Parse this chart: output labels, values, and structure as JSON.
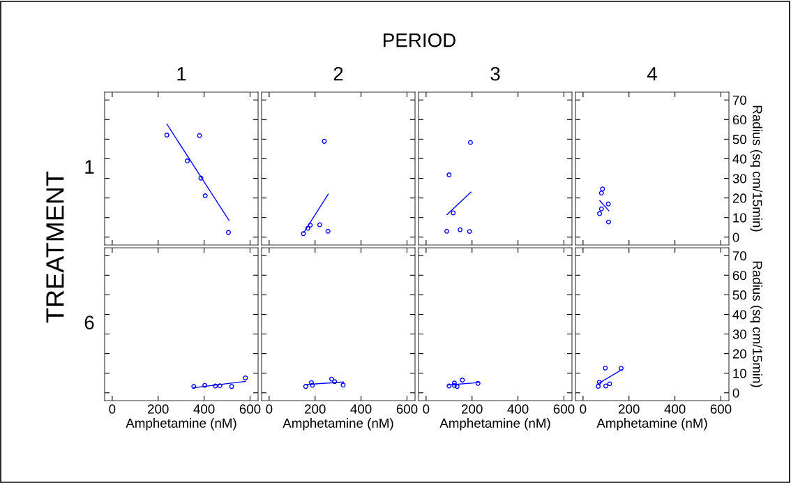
{
  "chart_data": [
    {
      "type": "scatter",
      "title": "1",
      "annotations": [
        "PERIOD",
        "TREATMENT",
        "1"
      ],
      "xlim": [
        -33,
        635
      ],
      "xticks": [
        0,
        200,
        400,
        600
      ],
      "ylim": [
        -4,
        74
      ],
      "yticks": [
        0,
        10,
        20,
        30,
        40,
        50,
        60,
        70
      ],
      "tick_labels": false,
      "marker": "circle",
      "grid": false,
      "series": [
        {
          "color": "#0000ff",
          "x": [
            238,
            380,
            327,
            386,
            405,
            506
          ],
          "values": [
            52.1,
            51.8,
            38.9,
            30.1,
            21.1,
            2.4
          ]
        },
        {
          "type": "line",
          "marker": "none",
          "color": "#0000ff",
          "x": [
            238,
            508
          ],
          "values": [
            57.7,
            8.6
          ]
        }
      ]
    },
    {
      "type": "scatter",
      "title": "2",
      "xlim": [
        -33,
        635
      ],
      "xticks": [
        0,
        200,
        400,
        600
      ],
      "ylim": [
        -4,
        74
      ],
      "yticks": [
        0,
        10,
        20,
        30,
        40,
        50,
        60,
        70
      ],
      "tick_labels": false,
      "marker": "circle",
      "grid": false,
      "series": [
        {
          "color": "#0000ff",
          "x": [
            149,
            168,
            179,
            220,
            240,
            256
          ],
          "values": [
            1.8,
            4.5,
            6.1,
            6.3,
            48.9,
            3.0
          ]
        },
        {
          "type": "line",
          "marker": "none",
          "color": "#0000ff",
          "x": [
            151,
            257
          ],
          "values": [
            2.4,
            21.9
          ]
        }
      ]
    },
    {
      "type": "scatter",
      "title": "3",
      "xlim": [
        -33,
        635
      ],
      "xticks": [
        0,
        200,
        400,
        600
      ],
      "ylim": [
        -4,
        74
      ],
      "yticks": [
        0,
        10,
        20,
        30,
        40,
        50,
        60,
        70
      ],
      "tick_labels": false,
      "marker": "circle",
      "grid": false,
      "series": [
        {
          "color": "#0000ff",
          "x": [
            90,
            100,
            118,
            148,
            189,
            193
          ],
          "values": [
            3.0,
            31.8,
            12.4,
            3.8,
            2.9,
            48.3
          ]
        },
        {
          "type": "line",
          "marker": "none",
          "color": "#0000ff",
          "x": [
            91,
            195
          ],
          "values": [
            11.5,
            23.0
          ]
        }
      ]
    },
    {
      "type": "scatter",
      "title": "4",
      "ylabel": "Radius (sq cm/15min)",
      "xlim": [
        -33,
        635
      ],
      "xticks": [
        0,
        200,
        400,
        600
      ],
      "ylim": [
        -4,
        74
      ],
      "yticks": [
        0,
        10,
        20,
        30,
        40,
        50,
        60,
        70
      ],
      "tick_labels": "y",
      "marker": "circle",
      "grid": false,
      "series": [
        {
          "color": "#0000ff",
          "x": [
            72,
            80,
            80,
            85,
            110,
            111
          ],
          "values": [
            12.0,
            14.4,
            22.5,
            24.6,
            16.9,
            7.7
          ]
        },
        {
          "type": "line",
          "marker": "none",
          "color": "#0000ff",
          "x": [
            73,
            112
          ],
          "values": [
            18.6,
            13.5
          ]
        }
      ]
    },
    {
      "type": "scatter",
      "xlabel": "Amphetamine (nM)",
      "annotations": [
        "6"
      ],
      "xlim": [
        -33,
        635
      ],
      "xticks": [
        0,
        200,
        400,
        600
      ],
      "ylim": [
        -4,
        74
      ],
      "yticks": [
        0,
        10,
        20,
        30,
        40,
        50,
        60,
        70
      ],
      "tick_labels": "x",
      "marker": "circle",
      "grid": false,
      "series": [
        {
          "color": "#0000ff",
          "x": [
            355,
            403,
            449,
            469,
            520,
            580
          ],
          "values": [
            3.2,
            3.8,
            3.5,
            3.6,
            3.2,
            7.6
          ]
        },
        {
          "type": "line",
          "marker": "none",
          "color": "#0000ff",
          "x": [
            355,
            580
          ],
          "values": [
            2.6,
            5.8
          ]
        }
      ]
    },
    {
      "type": "scatter",
      "xlabel": "Amphetamine (nM)",
      "xlim": [
        -33,
        635
      ],
      "xticks": [
        0,
        200,
        400,
        600
      ],
      "ylim": [
        -4,
        74
      ],
      "yticks": [
        0,
        10,
        20,
        30,
        40,
        50,
        60,
        70
      ],
      "tick_labels": "x",
      "marker": "circle",
      "grid": false,
      "series": [
        {
          "color": "#0000ff",
          "x": [
            159,
            184,
            188,
            272,
            285,
            322
          ],
          "values": [
            3.2,
            5.2,
            3.8,
            7.0,
            5.7,
            3.9
          ]
        },
        {
          "type": "line",
          "marker": "none",
          "color": "#0000ff",
          "x": [
            157,
            324
          ],
          "values": [
            4.2,
            5.5
          ]
        }
      ]
    },
    {
      "type": "scatter",
      "xlabel": "Amphetamine (nM)",
      "xlim": [
        -33,
        635
      ],
      "xticks": [
        0,
        200,
        400,
        600
      ],
      "ylim": [
        -4,
        74
      ],
      "yticks": [
        0,
        10,
        20,
        30,
        40,
        50,
        60,
        70
      ],
      "tick_labels": "x",
      "marker": "circle",
      "grid": false,
      "series": [
        {
          "color": "#0000ff",
          "x": [
            100,
            123,
            123,
            135,
            158,
            226
          ],
          "values": [
            3.5,
            5.0,
            3.7,
            3.2,
            6.5,
            4.8
          ]
        },
        {
          "type": "line",
          "marker": "none",
          "color": "#0000ff",
          "x": [
            98,
            227
          ],
          "values": [
            4.0,
            5.2
          ]
        }
      ]
    },
    {
      "type": "scatter",
      "xlabel": "Amphetamine (nM)",
      "ylabel": "Radius (sq cm/15min)",
      "xlim": [
        -33,
        635
      ],
      "xticks": [
        0,
        200,
        400,
        600
      ],
      "ylim": [
        -4,
        74
      ],
      "yticks": [
        0,
        10,
        20,
        30,
        40,
        50,
        60,
        70
      ],
      "marker": "circle",
      "grid": false,
      "series": [
        {
          "color": "#0000ff",
          "x": [
            66,
            71,
            97,
            99,
            116,
            166
          ],
          "values": [
            3.3,
            5.4,
            12.6,
            3.5,
            4.6,
            12.5
          ]
        },
        {
          "type": "line",
          "marker": "none",
          "color": "#0000ff",
          "x": [
            68,
            168
          ],
          "values": [
            4.8,
            11.8
          ]
        }
      ]
    }
  ]
}
